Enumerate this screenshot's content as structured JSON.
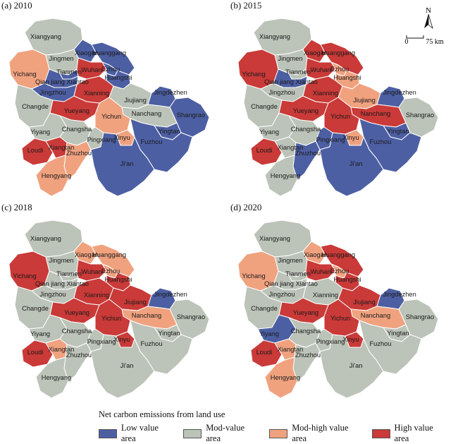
{
  "colors": {
    "low": "#4d5fa3",
    "mod": "#bcc3b8",
    "modhigh": "#f0a27f",
    "high": "#c93a38",
    "border": "#ffffff"
  },
  "panels": [
    {
      "id": "p2010",
      "title": "(a) 2010",
      "levels": {
        "Xiangyang": "mod",
        "Jingmen": "mod",
        "Xiaogan": "low",
        "Huanggang": "low",
        "Yichang": "modhigh",
        "Tianmen": "low",
        "QianjiangXiantao": "low",
        "Wuhan": "high",
        "Ezhou": "low",
        "Jingzhou": "low",
        "Huangshi": "low",
        "Xianning": "high",
        "Jiujiang": "mod",
        "Jingdezhen": "low",
        "Shangrao": "low",
        "Changde": "mod",
        "Yueyang": "high",
        "Nanchang": "mod",
        "Yichun": "modhigh",
        "Yingtan": "low",
        "Yiyang": "mod",
        "Changsha": "mod",
        "Xinyu": "modhigh",
        "Loudi": "high",
        "Xiangtan": "high",
        "Pingxiang": "mod",
        "Zhuzhou": "modhigh",
        "Fuzhou": "low",
        "Jian": "low",
        "Hengyang": "modhigh"
      }
    },
    {
      "id": "p2015",
      "title": "(b) 2015",
      "levels": {
        "Xiangyang": "mod",
        "Jingmen": "mod",
        "Xiaogan": "high",
        "Huanggang": "high",
        "Yichang": "high",
        "Tianmen": "mod",
        "QianjiangXiantao": "low",
        "Wuhan": "high",
        "Ezhou": "modhigh",
        "Jingzhou": "mod",
        "Huangshi": "modhigh",
        "Xianning": "high",
        "Jiujiang": "modhigh",
        "Jingdezhen": "low",
        "Shangrao": "mod",
        "Changde": "mod",
        "Yueyang": "high",
        "Nanchang": "high",
        "Yichun": "high",
        "Yingtan": "low",
        "Yiyang": "mod",
        "Changsha": "mod",
        "Xinyu": "modhigh",
        "Loudi": "high",
        "Xiangtan": "mod",
        "Pingxiang": "low",
        "Zhuzhou": "low",
        "Fuzhou": "low",
        "Jian": "low",
        "Hengyang": "mod"
      }
    },
    {
      "id": "p2018",
      "title": "(c) 2018",
      "levels": {
        "Xiangyang": "mod",
        "Jingmen": "mod",
        "Xiaogan": "modhigh",
        "Huanggang": "modhigh",
        "Yichang": "high",
        "Tianmen": "mod",
        "QianjiangXiantao": "mod",
        "Wuhan": "high",
        "Ezhou": "modhigh",
        "Jingzhou": "mod",
        "Huangshi": "high",
        "Xianning": "high",
        "Jiujiang": "high",
        "Jingdezhen": "low",
        "Shangrao": "mod",
        "Changde": "mod",
        "Yueyang": "high",
        "Nanchang": "modhigh",
        "Yichun": "high",
        "Yingtan": "mod",
        "Yiyang": "mod",
        "Changsha": "mod",
        "Xinyu": "high",
        "Loudi": "high",
        "Xiangtan": "modhigh",
        "Pingxiang": "mod",
        "Zhuzhou": "mod",
        "Fuzhou": "mod",
        "Jian": "mod",
        "Hengyang": "mod"
      }
    },
    {
      "id": "p2020",
      "title": "(d) 2020",
      "levels": {
        "Xiangyang": "mod",
        "Jingmen": "mod",
        "Xiaogan": "modhigh",
        "Huanggang": "high",
        "Yichang": "modhigh",
        "Tianmen": "mod",
        "QianjiangXiantao": "mod",
        "Wuhan": "high",
        "Ezhou": "modhigh",
        "Jingzhou": "mod",
        "Huangshi": "high",
        "Xianning": "mod",
        "Jiujiang": "high",
        "Jingdezhen": "low",
        "Shangrao": "mod",
        "Changde": "mod",
        "Yueyang": "high",
        "Nanchang": "modhigh",
        "Yichun": "high",
        "Yingtan": "mod",
        "Yiyang": "low",
        "Changsha": "mod",
        "Xinyu": "high",
        "Loudi": "high",
        "Xiangtan": "modhigh",
        "Pingxiang": "mod",
        "Zhuzhou": "mod",
        "Fuzhou": "mod",
        "Jian": "mod",
        "Hengyang": "modhigh"
      }
    }
  ],
  "city_names": {
    "Xiangyang": "Xiangyang",
    "Jingmen": "Jingmen",
    "Xiaogan": "Xiaogan",
    "Huanggang": "Huanggang",
    "Yichang": "Yichang",
    "Tianmen": "Tianmen",
    "QianjiangXiantao": "Qian jiang Xiantao",
    "Wuhan": "Wuhan",
    "Ezhou": "Ezhou",
    "Jingzhou": "Jingzhou",
    "Huangshi": "Huangshi",
    "Xianning": "Xianning",
    "Jiujiang": "Jiujiang",
    "Jingdezhen": "Jingdezhen",
    "Shangrao": "Shangrao",
    "Changde": "Changde",
    "Yueyang": "Yueyang",
    "Nanchang": "Nanchang",
    "Yichun": "Yichun",
    "Yingtan": "Yingtan",
    "Yiyang": "Yiyang",
    "Changsha": "Changsha",
    "Xinyu": "Xinyu",
    "Loudi": "Loudi",
    "Xiangtan": "Xiangtan",
    "Pingxiang": "Pingxiang",
    "Zhuzhou": "Zhuzhou",
    "Fuzhou": "Fuzhou",
    "Jian": "Ji'an",
    "Hengyang": "Hengyang"
  },
  "north_arrow": {
    "label": "N",
    "scale_zero": "0",
    "scale_label": "75 km",
    "icon": "north-arrow-icon"
  },
  "legend": {
    "title": "Net carbon emissions from land use",
    "items": [
      {
        "key": "low",
        "label": "Low value area"
      },
      {
        "key": "mod",
        "label": "Mod-value area"
      },
      {
        "key": "modhigh",
        "label": "Mod-high value area"
      },
      {
        "key": "high",
        "label": "High value area"
      }
    ]
  }
}
